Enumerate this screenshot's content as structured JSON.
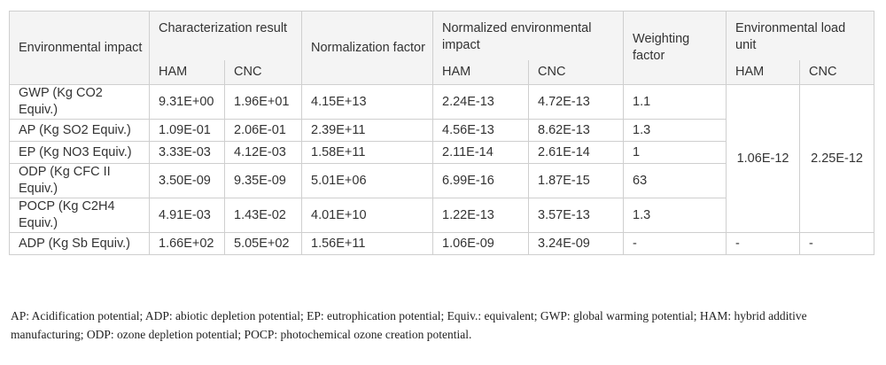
{
  "table": {
    "headers": {
      "impact": "Environmental impact",
      "characterization": "Characterization result",
      "normalization_factor": "Normalization factor",
      "normalized_impact": "Normalized environmental impact",
      "weighting_factor": "Weighting factor",
      "load_unit": "Environmental load unit",
      "ham": "HAM",
      "cnc": "CNC"
    },
    "rows": [
      {
        "impact": "GWP (Kg CO2 Equiv.)",
        "char_ham": "9.31E+00",
        "char_cnc": "1.96E+01",
        "norm_factor": "4.15E+13",
        "norm_ham": "2.24E-13",
        "norm_cnc": "4.72E-13",
        "weight": "1.1"
      },
      {
        "impact": "AP (Kg SO2 Equiv.)",
        "char_ham": "1.09E-01",
        "char_cnc": "2.06E-01",
        "norm_factor": "2.39E+11",
        "norm_ham": "4.56E-13",
        "norm_cnc": "8.62E-13",
        "weight": "1.3"
      },
      {
        "impact": "EP (Kg NO3 Equiv.)",
        "char_ham": "3.33E-03",
        "char_cnc": "4.12E-03",
        "norm_factor": "1.58E+11",
        "norm_ham": "2.11E-14",
        "norm_cnc": "2.61E-14",
        "weight": "1"
      },
      {
        "impact": "ODP (Kg CFC II Equiv.)",
        "char_ham": "3.50E-09",
        "char_cnc": "9.35E-09",
        "norm_factor": "5.01E+06",
        "norm_ham": "6.99E-16",
        "norm_cnc": "1.87E-15",
        "weight": "63"
      },
      {
        "impact": "POCP (Kg C2H4 Equiv.)",
        "char_ham": "4.91E-03",
        "char_cnc": "1.43E-02",
        "norm_factor": "4.01E+10",
        "norm_ham": "1.22E-13",
        "norm_cnc": "3.57E-13",
        "weight": "1.3"
      },
      {
        "impact": "ADP (Kg Sb Equiv.)",
        "char_ham": "1.66E+02",
        "char_cnc": "5.05E+02",
        "norm_factor": "1.56E+11",
        "norm_ham": "1.06E-09",
        "norm_cnc": "3.24E-09",
        "weight": "-",
        "load_ham": "-",
        "load_cnc": "-"
      }
    ],
    "load_unit_merged": {
      "ham": "1.06E-12",
      "cnc": "2.25E-12"
    }
  },
  "footnote": "AP: Acidification potential; ADP: abiotic depletion potential; EP: eutrophication potential; Equiv.: equivalent; GWP: global warming potential; HAM: hybrid additive manufacturing; ODP: ozone depletion potential; POCP: photochemical ozone creation potential."
}
